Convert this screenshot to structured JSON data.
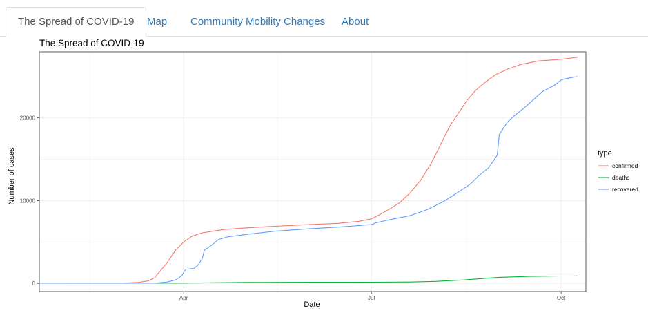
{
  "tabs": [
    {
      "label": "The Spread of COVID-19",
      "active": true
    },
    {
      "label": "Map",
      "active": false
    },
    {
      "label": "Community Mobility Changes",
      "active": false
    },
    {
      "label": "About",
      "active": false
    }
  ],
  "chart_data": {
    "type": "line",
    "title": "The Spread of COVID-19",
    "xlabel": "Date",
    "ylabel": "Number of cases",
    "xlim": [
      "2020-01-22",
      "2020-10-13"
    ],
    "ylim": [
      -1000,
      28000
    ],
    "x_ticks": [
      {
        "label": "Apr",
        "date": "2020-04-01"
      },
      {
        "label": "Jul",
        "date": "2020-07-01"
      },
      {
        "label": "Oct",
        "date": "2020-10-01"
      }
    ],
    "y_ticks": [
      0,
      10000,
      20000
    ],
    "grid": true,
    "legend": {
      "title": "type",
      "position": "right"
    },
    "series": [
      {
        "name": "confirmed",
        "color": "#F8766D",
        "points": [
          [
            "2020-01-22",
            0
          ],
          [
            "2020-02-15",
            0
          ],
          [
            "2020-03-01",
            5
          ],
          [
            "2020-03-10",
            100
          ],
          [
            "2020-03-15",
            300
          ],
          [
            "2020-03-18",
            700
          ],
          [
            "2020-03-20",
            1300
          ],
          [
            "2020-03-24",
            2500
          ],
          [
            "2020-03-28",
            4000
          ],
          [
            "2020-04-01",
            5000
          ],
          [
            "2020-04-05",
            5700
          ],
          [
            "2020-04-10",
            6100
          ],
          [
            "2020-04-15",
            6300
          ],
          [
            "2020-04-20",
            6500
          ],
          [
            "2020-05-01",
            6700
          ],
          [
            "2020-05-15",
            6900
          ],
          [
            "2020-06-01",
            7100
          ],
          [
            "2020-06-15",
            7250
          ],
          [
            "2020-06-25",
            7500
          ],
          [
            "2020-07-01",
            7800
          ],
          [
            "2020-07-05",
            8300
          ],
          [
            "2020-07-10",
            9000
          ],
          [
            "2020-07-15",
            9800
          ],
          [
            "2020-07-20",
            11000
          ],
          [
            "2020-07-25",
            12500
          ],
          [
            "2020-07-30",
            14500
          ],
          [
            "2020-08-04",
            17000
          ],
          [
            "2020-08-08",
            19000
          ],
          [
            "2020-08-12",
            20500
          ],
          [
            "2020-08-16",
            22000
          ],
          [
            "2020-08-20",
            23200
          ],
          [
            "2020-08-25",
            24300
          ],
          [
            "2020-08-30",
            25200
          ],
          [
            "2020-09-05",
            25900
          ],
          [
            "2020-09-12",
            26500
          ],
          [
            "2020-09-20",
            26900
          ],
          [
            "2020-10-01",
            27100
          ],
          [
            "2020-10-09",
            27350
          ]
        ]
      },
      {
        "name": "deaths",
        "color": "#00BA38",
        "points": [
          [
            "2020-01-22",
            0
          ],
          [
            "2020-03-15",
            0
          ],
          [
            "2020-04-01",
            20
          ],
          [
            "2020-05-01",
            100
          ],
          [
            "2020-06-01",
            120
          ],
          [
            "2020-07-01",
            130
          ],
          [
            "2020-07-20",
            150
          ],
          [
            "2020-08-01",
            230
          ],
          [
            "2020-08-15",
            400
          ],
          [
            "2020-09-01",
            720
          ],
          [
            "2020-09-15",
            830
          ],
          [
            "2020-10-01",
            880
          ],
          [
            "2020-10-09",
            890
          ]
        ]
      },
      {
        "name": "recovered",
        "color": "#619CFF",
        "points": [
          [
            "2020-01-22",
            0
          ],
          [
            "2020-03-18",
            10
          ],
          [
            "2020-03-24",
            150
          ],
          [
            "2020-03-28",
            400
          ],
          [
            "2020-03-31",
            900
          ],
          [
            "2020-04-02",
            1700
          ],
          [
            "2020-04-06",
            1800
          ],
          [
            "2020-04-08",
            2200
          ],
          [
            "2020-04-10",
            3000
          ],
          [
            "2020-04-11",
            4000
          ],
          [
            "2020-04-15",
            4700
          ],
          [
            "2020-04-18",
            5300
          ],
          [
            "2020-04-22",
            5600
          ],
          [
            "2020-05-01",
            5900
          ],
          [
            "2020-05-15",
            6300
          ],
          [
            "2020-06-01",
            6600
          ],
          [
            "2020-06-15",
            6800
          ],
          [
            "2020-07-01",
            7100
          ],
          [
            "2020-07-03",
            7300
          ],
          [
            "2020-07-10",
            7700
          ],
          [
            "2020-07-20",
            8200
          ],
          [
            "2020-07-28",
            8900
          ],
          [
            "2020-08-05",
            9900
          ],
          [
            "2020-08-12",
            11000
          ],
          [
            "2020-08-18",
            12000
          ],
          [
            "2020-08-22",
            13000
          ],
          [
            "2020-08-27",
            14000
          ],
          [
            "2020-08-31",
            15500
          ],
          [
            "2020-09-01",
            18000
          ],
          [
            "2020-09-05",
            19500
          ],
          [
            "2020-09-08",
            20200
          ],
          [
            "2020-09-13",
            21200
          ],
          [
            "2020-09-18",
            22300
          ],
          [
            "2020-09-22",
            23200
          ],
          [
            "2020-09-28",
            24000
          ],
          [
            "2020-10-01",
            24600
          ],
          [
            "2020-10-05",
            24850
          ],
          [
            "2020-10-09",
            25000
          ]
        ]
      }
    ]
  }
}
